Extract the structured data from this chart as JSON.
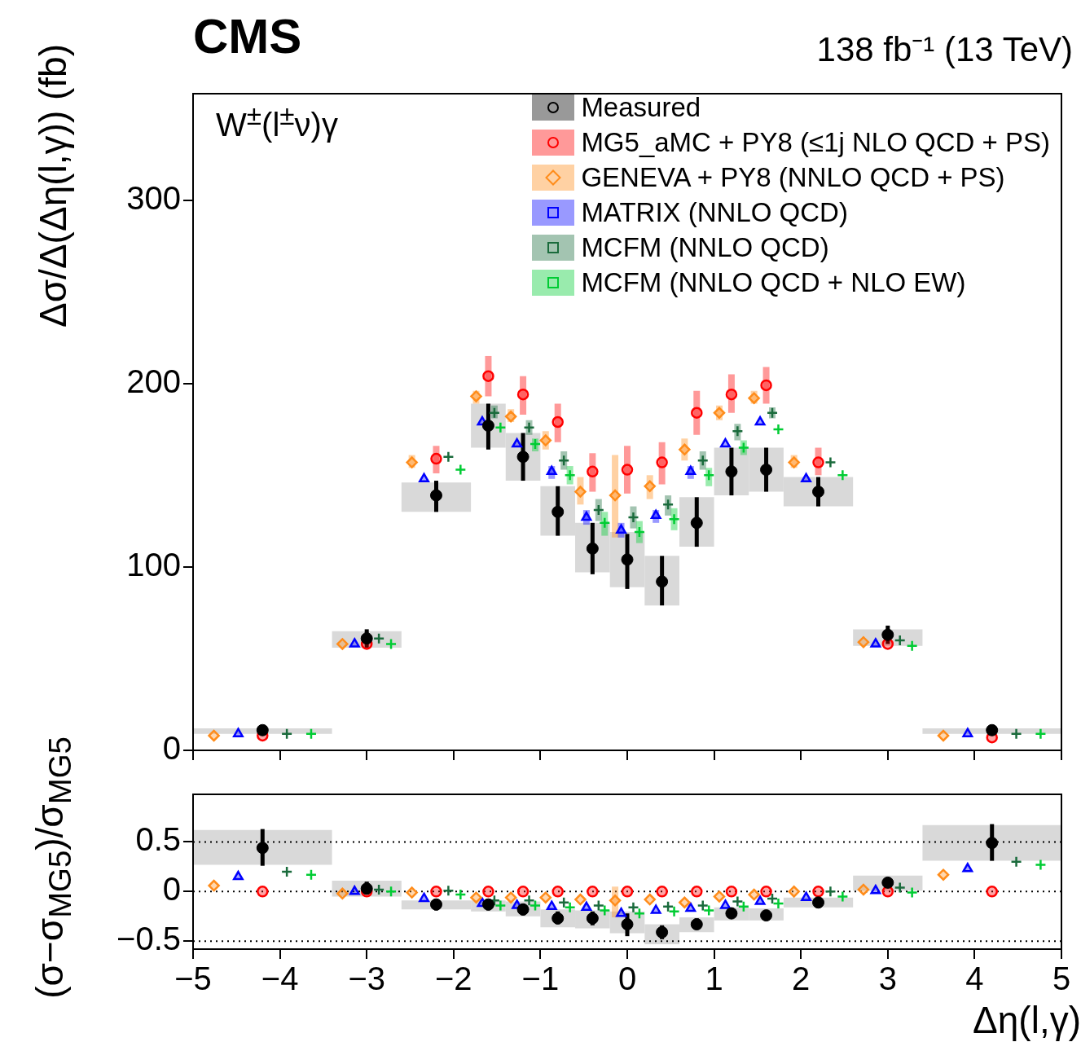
{
  "chart_data": [
    {
      "type": "scatter",
      "title": "CMS",
      "subtitle": "138 fb⁻¹ (13 TeV)",
      "ylabel": "Δσ/Δ(Δη(l,γ)) (fb)",
      "annotations": [
        "W$^{±}$(l$^{±}$ν)γ"
      ],
      "legend": "top right",
      "tick_labels": "y",
      "xlim": [
        -5,
        5
      ],
      "xticks": [
        -5,
        -4,
        -3,
        -2,
        -1,
        0,
        1,
        2,
        3,
        4,
        5
      ],
      "ylim": [
        0,
        358
      ],
      "yticks": [
        0,
        100,
        200,
        300
      ],
      "series": [
        {
          "type": "histogram",
          "color": "#d9d9d9",
          "bins": [
            -5,
            -3.4,
            -2.6,
            -1.8,
            -1.4,
            -1,
            -0.6,
            -0.2,
            0.2,
            0.6,
            1,
            1.4,
            1.8,
            2.6,
            3.4,
            5
          ],
          "base": [
            9,
            56,
            130,
            165,
            147,
            117,
            97,
            89,
            79,
            111,
            139,
            141,
            133,
            57,
            9
          ],
          "values": [
            3,
            9,
            16,
            24,
            26,
            27,
            27,
            30,
            27,
            27,
            26,
            24,
            16,
            9,
            3
          ]
        },
        {
          "name": "Measured",
          "color": "#000000",
          "marker": "circle",
          "x": [
            -4.2,
            -3,
            -2.2,
            -1.6,
            -1.2,
            -0.8,
            -0.4,
            0,
            0.4,
            0.8,
            1.2,
            1.6,
            2.2,
            3,
            4.2
          ],
          "values": [
            11,
            61,
            139,
            177,
            160,
            130,
            110,
            104,
            92,
            124,
            152,
            153,
            141,
            63,
            11
          ],
          "errors": [
            null,
            [
              56,
              66
            ],
            [
              130,
              147
            ],
            [
              164,
              189
            ],
            [
              147,
              173
            ],
            [
              117,
              144
            ],
            [
              96,
              124
            ],
            [
              88,
              118
            ],
            [
              79,
              106
            ],
            [
              111,
              138
            ],
            [
              139,
              165
            ],
            [
              141,
              165
            ],
            [
              133,
              149
            ],
            [
              58,
              68
            ],
            null
          ]
        },
        {
          "name": "MG5_aMC + PY8 (≤1j NLO QCD + PS)",
          "color": "#ff0000",
          "marker": "circle",
          "x": [
            -4.2,
            -3,
            -2.2,
            -1.6,
            -1.2,
            -0.8,
            -0.4,
            0,
            0.4,
            0.8,
            1.2,
            1.6,
            2.2,
            3,
            4.2
          ],
          "values": [
            8,
            58,
            159,
            204,
            194,
            179,
            152,
            153,
            157,
            184,
            194,
            199,
            157,
            58,
            7
          ],
          "errors": [
            null,
            null,
            [
              151,
              166
            ],
            [
              193,
              215
            ],
            [
              183,
              204
            ],
            [
              168,
              189
            ],
            [
              141,
              162
            ],
            [
              140,
              166
            ],
            [
              145,
              168
            ],
            [
              172,
              196
            ],
            [
              184,
              205
            ],
            [
              189,
              209
            ],
            [
              150,
              165
            ],
            null,
            null
          ]
        },
        {
          "name": "GENEVA + PY8 (NNLO QCD + PS)",
          "color": "#ff8c1a",
          "marker": "diamond",
          "x": [
            -4.76,
            -3.28,
            -2.48,
            -1.74,
            -1.34,
            -0.94,
            -0.54,
            -0.14,
            0.26,
            0.66,
            1.06,
            1.46,
            1.92,
            2.72,
            3.64
          ],
          "values": [
            8,
            58,
            157,
            193,
            182,
            169,
            141,
            139,
            144,
            164,
            184,
            192,
            157,
            59,
            8
          ],
          "errors": [
            null,
            null,
            [
              154,
              161
            ],
            [
              189,
              196
            ],
            [
              179,
              186
            ],
            [
              164,
              174
            ],
            [
              134,
              149
            ],
            [
              116,
              161
            ],
            [
              137,
              150
            ],
            [
              158,
              170
            ],
            [
              180,
              188
            ],
            [
              189,
              196
            ],
            [
              154,
              161
            ],
            null,
            null
          ]
        },
        {
          "name": "MATRIX (NNLO QCD)",
          "color": "#0000ff",
          "marker": "triangle",
          "x": [
            -4.48,
            -3.14,
            -2.34,
            -1.67,
            -1.27,
            -0.87,
            -0.47,
            -0.07,
            0.33,
            0.73,
            1.13,
            1.53,
            2.06,
            2.86,
            3.92
          ],
          "values": [
            9,
            58,
            148,
            179,
            167,
            152,
            127,
            120,
            128,
            152,
            167,
            179,
            148,
            58,
            9
          ],
          "errors": [
            null,
            null,
            null,
            null,
            null,
            [
              148,
              155
            ],
            [
              123,
              131
            ],
            [
              116,
              124
            ],
            [
              124,
              131
            ],
            [
              148,
              155
            ],
            null,
            null,
            null,
            null,
            null
          ]
        },
        {
          "name": "MCFM (NNLO QCD)",
          "color": "#1a6b3c",
          "marker": "cross",
          "x": [
            -3.92,
            -2.86,
            -2.06,
            -1.53,
            -1.13,
            -0.73,
            -0.33,
            0.07,
            0.47,
            0.87,
            1.27,
            1.67,
            2.34,
            3.14,
            4.48
          ],
          "values": [
            9,
            61,
            160,
            184,
            176,
            158,
            131,
            127,
            134,
            158,
            174,
            184,
            157,
            60,
            9
          ],
          "errors": [
            null,
            null,
            null,
            [
              181,
              188
            ],
            [
              172,
              180
            ],
            [
              153,
              163
            ],
            [
              125,
              137
            ],
            [
              121,
              133
            ],
            [
              128,
              139
            ],
            [
              153,
              163
            ],
            [
              169,
              178
            ],
            [
              181,
              187
            ],
            null,
            null,
            null
          ]
        },
        {
          "name": "MCFM (NNLO QCD + NLO EW)",
          "color": "#00cc33",
          "marker": "cross",
          "x": [
            -3.64,
            -2.72,
            -1.92,
            -1.46,
            -1.06,
            -0.66,
            -0.26,
            0.14,
            0.54,
            0.94,
            1.34,
            1.74,
            2.48,
            3.28,
            4.76
          ],
          "values": [
            9,
            58,
            153,
            176,
            167,
            150,
            124,
            119,
            126,
            150,
            165,
            175,
            150,
            57,
            9
          ],
          "errors": [
            null,
            null,
            null,
            null,
            [
              163,
              170
            ],
            [
              145,
              155
            ],
            [
              117,
              130
            ],
            [
              113,
              125
            ],
            [
              120,
              132
            ],
            [
              144,
              154
            ],
            [
              161,
              169
            ],
            null,
            null,
            null,
            null
          ]
        }
      ]
    },
    {
      "type": "scatter",
      "xlabel": "Δη(l,γ)",
      "ylabel": "(σ−σ$_{MG5}$)/σ$_{MG5}$",
      "xlim": [
        -5,
        5
      ],
      "xticks": [
        {
          "value": -5,
          "label": "−5"
        },
        {
          "value": -4,
          "label": "−4"
        },
        {
          "value": -3,
          "label": "−3"
        },
        {
          "value": -2,
          "label": "−2"
        },
        {
          "value": -1,
          "label": "−1"
        },
        0,
        1,
        2,
        3,
        4,
        5
      ],
      "ylim": [
        -0.58,
        0.98
      ],
      "yticks": [
        {
          "value": -0.5,
          "label": "−0.5"
        },
        0,
        0.5
      ],
      "ref_lines": [
        {
          "axis": "y",
          "value": 0.5,
          "color": "#000000",
          "line_style": "dotted"
        },
        {
          "axis": "y",
          "value": 0,
          "color": "#000000",
          "line_style": "dotted"
        },
        {
          "axis": "y",
          "value": -0.5,
          "color": "#000000",
          "line_style": "dotted"
        }
      ],
      "series": [
        {
          "type": "histogram",
          "color": "#d9d9d9",
          "bins": [
            -5,
            -3.4,
            -2.6,
            -1.8,
            -1.4,
            -1,
            -0.6,
            -0.2,
            0.2,
            0.6,
            1,
            1.4,
            1.8,
            2.6,
            3.4,
            5
          ],
          "base": [
            0.27,
            -0.05,
            -0.18,
            -0.2,
            -0.25,
            -0.36,
            -0.37,
            -0.42,
            -0.53,
            -0.41,
            -0.29,
            -0.29,
            -0.16,
            0.01,
            0.31
          ],
          "values": [
            0.35,
            0.16,
            0.09,
            0.11,
            0.15,
            0.18,
            0.18,
            0.22,
            0.2,
            0.15,
            0.13,
            0.12,
            0.1,
            0.15,
            0.36
          ]
        },
        {
          "color": "#000000",
          "marker": "circle",
          "x": [
            -4.2,
            -3,
            -2.2,
            -1.6,
            -1.2,
            -0.8,
            -0.4,
            0,
            0.4,
            0.8,
            1.2,
            1.6,
            2.2,
            3,
            4.2
          ],
          "values": [
            0.44,
            0.03,
            -0.13,
            -0.13,
            -0.18,
            -0.27,
            -0.27,
            -0.33,
            -0.41,
            -0.33,
            -0.22,
            -0.24,
            -0.11,
            0.09,
            0.49
          ],
          "errors": [
            [
              0.26,
              0.63
            ],
            [
              -0.03,
              0.1
            ],
            [
              -0.19,
              -0.13
            ],
            [
              -0.19,
              -0.08
            ],
            [
              -0.24,
              -0.12
            ],
            [
              -0.33,
              -0.2
            ],
            [
              -0.34,
              -0.2
            ],
            [
              -0.45,
              -0.22
            ],
            [
              -0.48,
              -0.34
            ],
            [
              -0.38,
              -0.27
            ],
            [
              -0.27,
              -0.16
            ],
            [
              -0.29,
              -0.19
            ],
            [
              -0.16,
              -0.11
            ],
            [
              0.04,
              0.14
            ],
            [
              0.31,
              0.68
            ]
          ]
        },
        {
          "color": "#ff0000",
          "marker": "circle",
          "x": [
            -4.2,
            -3,
            -2.2,
            -1.6,
            -1.2,
            -0.8,
            -0.4,
            0,
            0.4,
            0.8,
            1.2,
            1.6,
            2.2,
            3,
            4.2
          ],
          "values": [
            0,
            0,
            0,
            0,
            0,
            0,
            0,
            0,
            0,
            0,
            0,
            0,
            0,
            0,
            0
          ]
        },
        {
          "color": "#ff8c1a",
          "marker": "diamond",
          "x": [
            -4.76,
            -3.28,
            -2.48,
            -1.74,
            -1.34,
            -0.94,
            -0.54,
            -0.14,
            0.26,
            0.66,
            1.06,
            1.46,
            1.92,
            2.72,
            3.64
          ],
          "values": [
            0.06,
            -0.02,
            -0.01,
            -0.06,
            -0.06,
            -0.06,
            -0.08,
            -0.09,
            -0.08,
            -0.11,
            -0.05,
            -0.03,
            0,
            0.02,
            0.17
          ],
          "errors": [
            null,
            null,
            null,
            null,
            null,
            null,
            null,
            [
              -0.26,
              0.05
            ],
            null,
            null,
            null,
            null,
            null,
            null,
            null
          ]
        },
        {
          "color": "#0000ff",
          "marker": "triangle",
          "x": [
            -4.48,
            -3.14,
            -2.34,
            -1.67,
            -1.27,
            -0.87,
            -0.47,
            -0.07,
            0.33,
            0.73,
            1.13,
            1.53,
            2.06,
            2.86,
            3.92
          ],
          "values": [
            0.15,
            0,
            -0.07,
            -0.12,
            -0.14,
            -0.15,
            -0.16,
            -0.22,
            -0.19,
            -0.17,
            -0.14,
            -0.1,
            -0.06,
            0.01,
            0.23
          ]
        },
        {
          "color": "#1a6b3c",
          "marker": "cross",
          "x": [
            -3.92,
            -2.86,
            -2.06,
            -1.53,
            -1.13,
            -0.73,
            -0.33,
            0.07,
            0.47,
            0.87,
            1.27,
            1.67,
            2.34,
            3.14,
            4.48
          ],
          "values": [
            0.2,
            0.02,
            0.01,
            -0.09,
            -0.09,
            -0.11,
            -0.14,
            -0.16,
            -0.15,
            -0.14,
            -0.1,
            -0.07,
            0,
            0.04,
            0.3
          ]
        },
        {
          "color": "#00cc33",
          "marker": "cross",
          "x": [
            -3.64,
            -2.72,
            -1.92,
            -1.46,
            -1.06,
            -0.66,
            -0.26,
            0.14,
            0.54,
            0.94,
            1.34,
            1.74,
            2.48,
            3.28,
            4.76
          ],
          "values": [
            0.17,
            0,
            -0.03,
            -0.14,
            -0.14,
            -0.16,
            -0.19,
            -0.22,
            -0.2,
            -0.19,
            -0.15,
            -0.12,
            -0.05,
            -0.01,
            0.27
          ]
        }
      ]
    }
  ]
}
